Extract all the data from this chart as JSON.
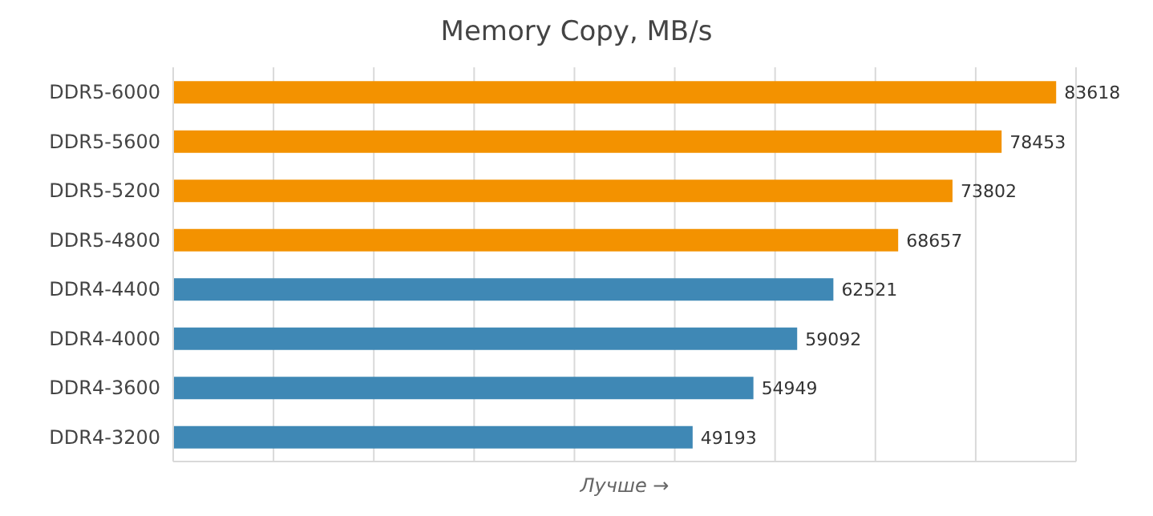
{
  "chart_data": {
    "type": "bar",
    "orientation": "horizontal",
    "title": "Memory Copy, MB/s",
    "categories": [
      "DDR5-6000",
      "DDR5-5600",
      "DDR5-5200",
      "DDR5-4800",
      "DDR4-4400",
      "DDR4-4000",
      "DDR4-3600",
      "DDR4-3200"
    ],
    "values": [
      83618,
      78453,
      73802,
      68657,
      62521,
      59092,
      54949,
      49193
    ],
    "colors": [
      "#f39200",
      "#f39200",
      "#f39200",
      "#f39200",
      "#3f88b5",
      "#3f88b5",
      "#3f88b5",
      "#3f88b5"
    ],
    "tick_labels": "y",
    "grid": "x",
    "data_labels": true,
    "annotations": [
      "Лучше →"
    ]
  }
}
